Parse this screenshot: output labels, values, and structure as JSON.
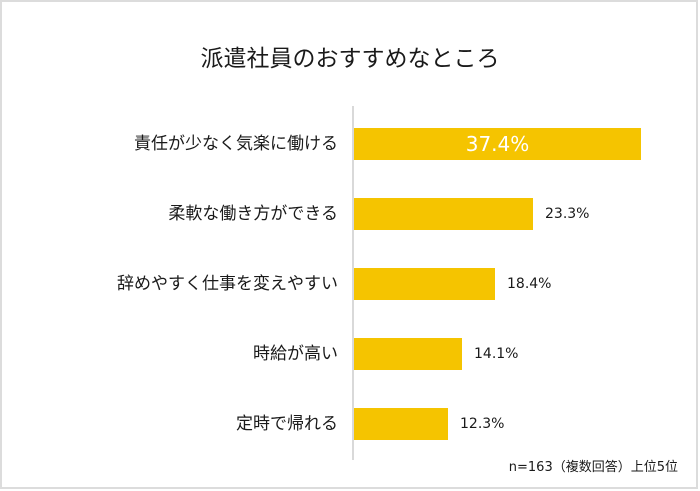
{
  "title": "派遣社員のおすすめなところ",
  "note": "n=163（複数回答）上位5位",
  "bar_color": "#f5c400",
  "chart_data": {
    "type": "bar",
    "orientation": "horizontal",
    "title": "派遣社員のおすすめなところ",
    "categories": [
      "責任が少なく気楽に働ける",
      "柔軟な働き方ができる",
      "辞めやすく仕事を変えやすい",
      "時給が高い",
      "定時で帰れる"
    ],
    "values": [
      37.4,
      23.3,
      18.4,
      14.1,
      12.3
    ],
    "value_labels": [
      "37.4%",
      "23.3%",
      "18.4%",
      "14.1%",
      "12.3%"
    ],
    "unit": "%",
    "xlabel": "",
    "ylabel": "",
    "grid": false,
    "legend": null,
    "annotation": "n=163（複数回答）上位5位"
  }
}
